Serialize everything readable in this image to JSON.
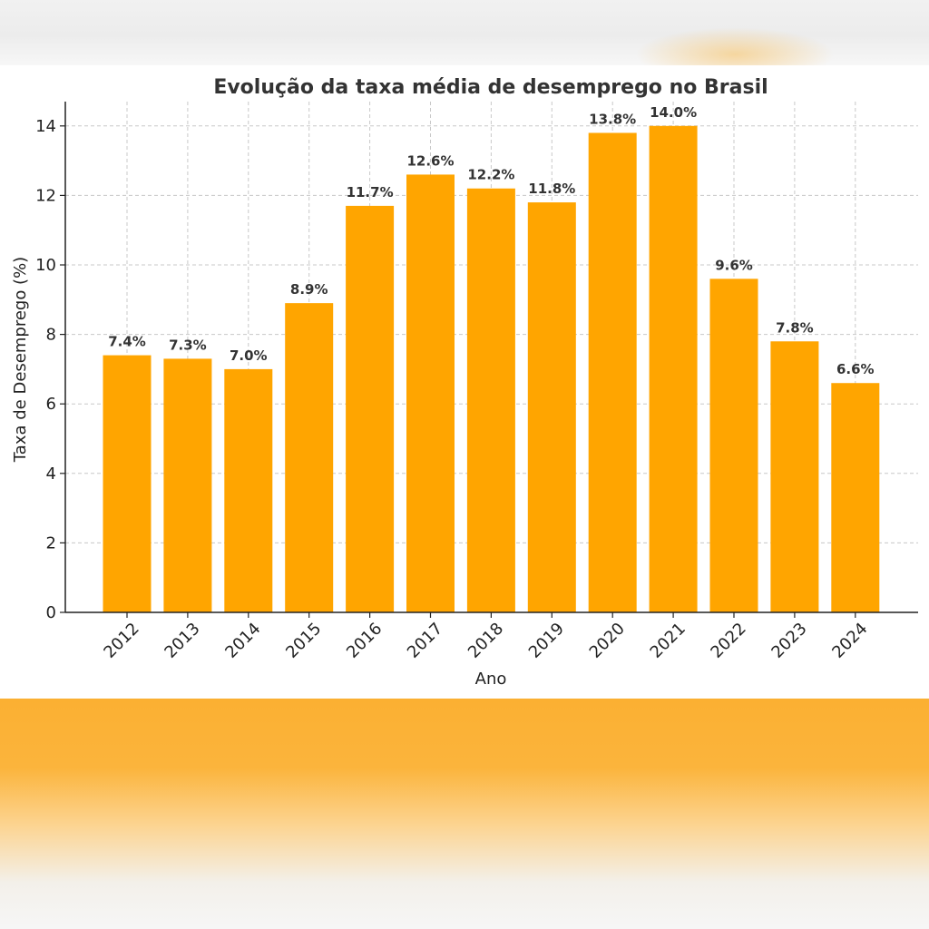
{
  "chart_data": {
    "type": "bar",
    "title": "Evolução da taxa média de desemprego no Brasil",
    "xlabel": "Ano",
    "ylabel": "Taxa de Desemprego (%)",
    "categories": [
      "2012",
      "2013",
      "2014",
      "2015",
      "2016",
      "2017",
      "2018",
      "2019",
      "2020",
      "2021",
      "2022",
      "2023",
      "2024"
    ],
    "values": [
      7.4,
      7.3,
      7.0,
      8.9,
      11.7,
      12.6,
      12.2,
      11.8,
      13.8,
      14.0,
      9.6,
      7.8,
      6.6
    ],
    "data_labels": [
      "7.4%",
      "7.3%",
      "7.0%",
      "8.9%",
      "11.7%",
      "12.6%",
      "12.2%",
      "11.8%",
      "13.8%",
      "14.0%",
      "9.6%",
      "7.8%",
      "6.6%"
    ],
    "ylim": [
      0,
      14.7
    ],
    "yticks": [
      0,
      2,
      4,
      6,
      8,
      10,
      12,
      14
    ],
    "grid": true,
    "bar_color": "#FFA500"
  }
}
